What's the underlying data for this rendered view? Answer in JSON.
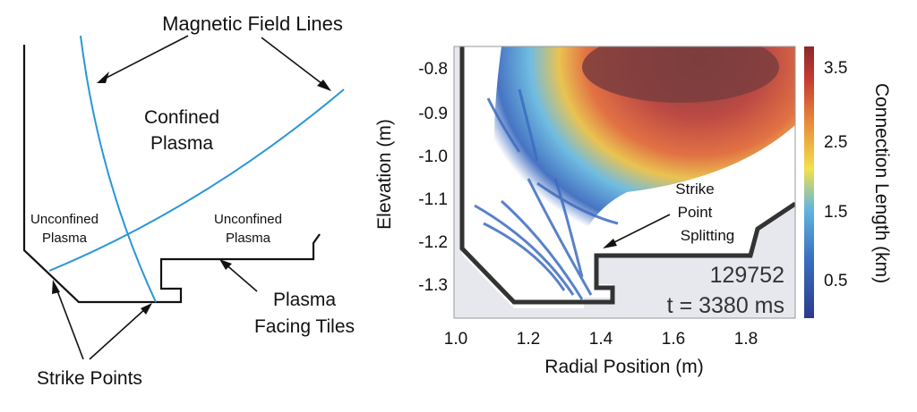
{
  "left_diagram": {
    "title": "Magnetic Field Lines",
    "confined_line1": "Confined",
    "confined_line2": "Plasma",
    "unconfined_left_line1": "Unconfined",
    "unconfined_left_line2": "Plasma",
    "unconfined_right_line1": "Unconfined",
    "unconfined_right_line2": "Plasma",
    "tiles_line1": "Plasma",
    "tiles_line2": "Facing Tiles",
    "strike_points": "Strike Points",
    "field_line_color": "#2a96d6"
  },
  "right_plot": {
    "ylabel": "Elevation (m)",
    "xlabel": "Radial Position (m)",
    "x_ticks": [
      "1.0",
      "1.2",
      "1.4",
      "1.6",
      "1.8"
    ],
    "y_ticks": [
      "-0.8",
      "-0.9",
      "-1.0",
      "-1.1",
      "-1.2",
      "-1.3"
    ],
    "annotation_line1": "Strike",
    "annotation_line2": "Point",
    "annotation_line3": "Splitting",
    "shot_number": "129752",
    "time_label": "t = 3380 ms"
  },
  "colorbar": {
    "label": "Connection Length (km)",
    "ticks": [
      "3.5",
      "2.5",
      "1.5",
      "0.5"
    ]
  }
}
